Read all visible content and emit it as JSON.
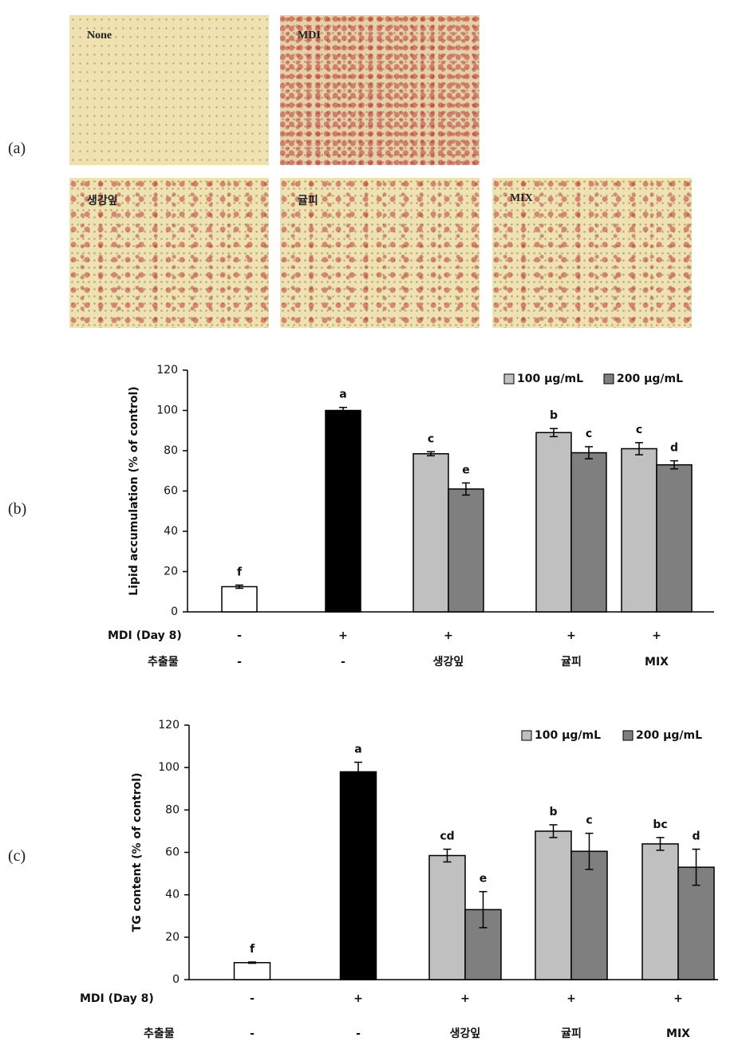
{
  "panel_labels": [
    "(a)",
    "(b)",
    "(c)"
  ],
  "images": [
    "None",
    "MDI",
    "생강잎",
    "귤피",
    "MIX"
  ],
  "chart_data": [
    {
      "type": "bar",
      "ylabel": "Lipid accumulation (% of control)",
      "ylim": [
        0,
        120
      ],
      "yticks": [
        0,
        20,
        40,
        60,
        80,
        100,
        120
      ],
      "rows": [
        {
          "label": "MDI (Day 8)",
          "values": [
            "-",
            "+",
            "+",
            "+",
            "+"
          ]
        },
        {
          "label": "추출물",
          "values": [
            "-",
            "-",
            "생강잎",
            "귤피",
            "MIX"
          ]
        }
      ],
      "control_series": {
        "colors": [
          "#ffffff",
          "#000000"
        ],
        "values": [
          12.5,
          100
        ],
        "errors": [
          0.8,
          1.5
        ],
        "letters": [
          "f",
          "a"
        ]
      },
      "series": [
        {
          "name": "100 μg/mL",
          "color": "#c0c0c0",
          "values": [
            null,
            null,
            78.5,
            89,
            81
          ],
          "errors": [
            null,
            null,
            1,
            2,
            3
          ],
          "letters": [
            null,
            null,
            "c",
            "b",
            "c"
          ]
        },
        {
          "name": "200 μg/mL",
          "color": "#7f7f7f",
          "values": [
            null,
            null,
            61,
            79,
            73
          ],
          "errors": [
            null,
            null,
            3,
            3,
            2
          ],
          "letters": [
            null,
            null,
            "e",
            "c",
            "d"
          ]
        }
      ]
    },
    {
      "type": "bar",
      "ylabel": "TG content (% of control)",
      "ylim": [
        0,
        120
      ],
      "yticks": [
        0,
        20,
        40,
        60,
        80,
        100,
        120
      ],
      "rows": [
        {
          "label": "MDI (Day 8)",
          "values": [
            "-",
            "+",
            "+",
            "+",
            "+"
          ]
        },
        {
          "label": "추출물",
          "values": [
            "-",
            "-",
            "생강잎",
            "귤피",
            "MIX"
          ]
        }
      ],
      "control_series": {
        "colors": [
          "#ffffff",
          "#000000"
        ],
        "values": [
          8,
          98
        ],
        "errors": [
          0.3,
          4.5
        ],
        "letters": [
          "f",
          "a"
        ]
      },
      "series": [
        {
          "name": "100 μg/mL",
          "color": "#c0c0c0",
          "values": [
            null,
            null,
            58.5,
            70,
            64
          ],
          "errors": [
            null,
            null,
            3,
            3,
            3
          ],
          "letters": [
            null,
            null,
            "cd",
            "b",
            "bc"
          ]
        },
        {
          "name": "200 μg/mL",
          "color": "#7f7f7f",
          "values": [
            null,
            null,
            33,
            60.5,
            53
          ],
          "errors": [
            null,
            null,
            8.5,
            8.5,
            8.5
          ],
          "letters": [
            null,
            null,
            "e",
            "c",
            "d"
          ]
        }
      ]
    }
  ]
}
